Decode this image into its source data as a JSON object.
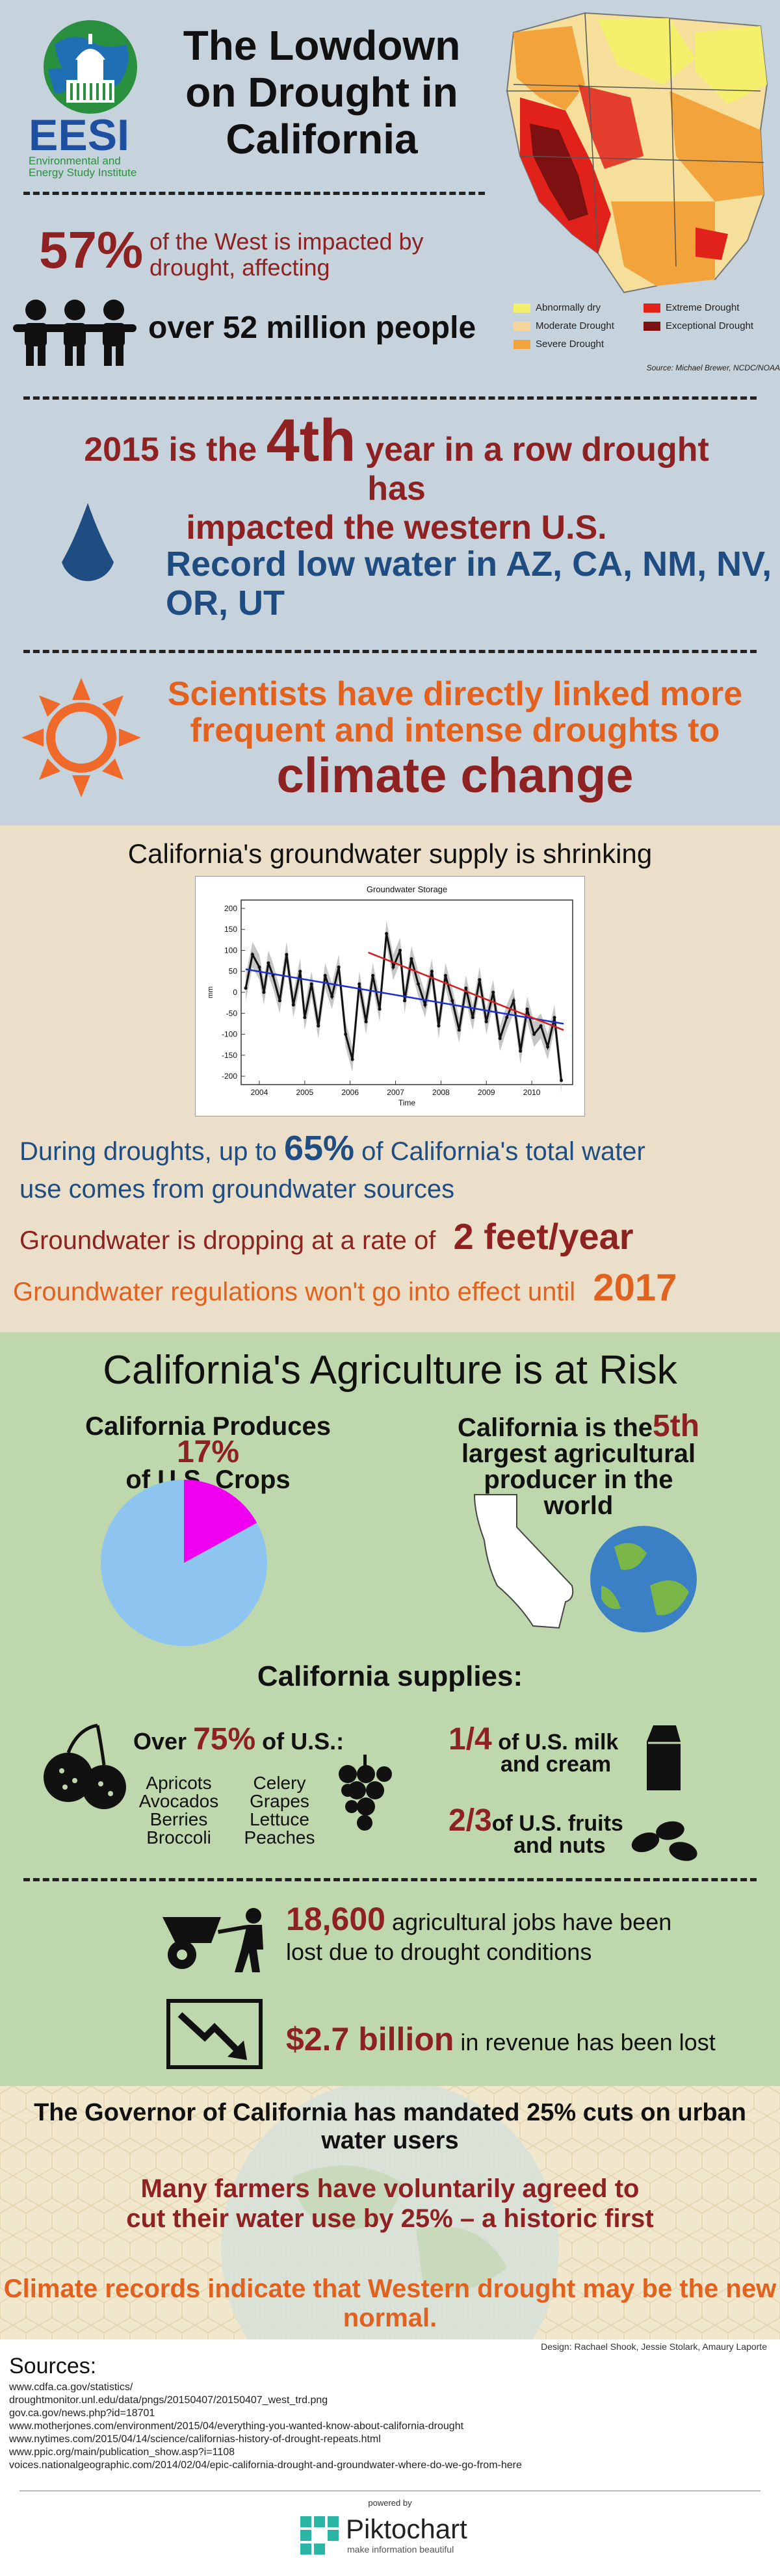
{
  "header": {
    "logo_text": "EESI",
    "logo_subtitle_1": "Environmental and",
    "logo_subtitle_2": "Energy Study Institute",
    "title_line1": "The Lowdown",
    "title_line2": "on Drought in",
    "title_line3": "California"
  },
  "map": {
    "legend": [
      {
        "label": "Abnormally dry",
        "color": "#f5f06b"
      },
      {
        "label": "Moderate Drought",
        "color": "#f7d59a"
      },
      {
        "label": "Severe Drought",
        "color": "#f2a33b"
      },
      {
        "label": "Extreme Drought",
        "color": "#e0221b"
      },
      {
        "label": "Exceptional Drought",
        "color": "#7d1010"
      }
    ],
    "source": "Source: Michael Brewer, NCDC/NOAA"
  },
  "stats": {
    "percent": "57%",
    "percent_text_1": "of the West is impacted by",
    "percent_text_2": "drought, affecting",
    "people": "over 52 million people",
    "year_prefix": "2015 is the",
    "year_big": "4th",
    "year_suffix": "year in a row drought has",
    "year_line2": "impacted the western U.S.",
    "record_low": "Record low water in AZ, CA, NM, NV, OR, UT",
    "sci_line1": "Scientists have directly linked more",
    "sci_line2": "frequent and intense droughts to",
    "sci_line3": "climate change"
  },
  "groundwater": {
    "heading": "California's groundwater supply is shrinking",
    "during_1": "During droughts, up to",
    "during_pct": "65%",
    "during_2": "of California's total water",
    "during_3": "use comes from groundwater sources",
    "dropping": "Groundwater is dropping at a rate of",
    "dropping_val": "2 feet/year",
    "regs": "Groundwater regulations won't go into effect until",
    "regs_year": "2017"
  },
  "chart_data": {
    "type": "line",
    "title": "Groundwater Storage",
    "xlabel": "Time",
    "ylabel": "mm",
    "ylim": [
      -220,
      220
    ],
    "xlim": [
      2003.6,
      2010.9
    ],
    "x_ticks": [
      "2004",
      "2005",
      "2006",
      "2007",
      "2008",
      "2009",
      "2010"
    ],
    "y_ticks": [
      "200",
      "150",
      "100",
      "50",
      "0",
      "-50",
      "-100",
      "-150",
      "-200"
    ],
    "series": [
      {
        "name": "",
        "color": "#111111",
        "x": [
          2003.7,
          2003.85,
          2004.0,
          2004.1,
          2004.2,
          2004.3,
          2004.45,
          2004.6,
          2004.75,
          2004.9,
          2005.0,
          2005.15,
          2005.3,
          2005.45,
          2005.6,
          2005.75,
          2005.9,
          2006.05,
          2006.2,
          2006.35,
          2006.5,
          2006.65,
          2006.8,
          2006.95,
          2007.1,
          2007.2,
          2007.35,
          2007.5,
          2007.65,
          2007.8,
          2007.95,
          2008.1,
          2008.25,
          2008.4,
          2008.55,
          2008.7,
          2008.85,
          2009.0,
          2009.15,
          2009.3,
          2009.45,
          2009.6,
          2009.75,
          2009.9,
          2010.05,
          2010.2,
          2010.35,
          2010.5,
          2010.65
        ],
        "y": [
          10,
          90,
          60,
          0,
          70,
          40,
          -20,
          90,
          -30,
          50,
          -60,
          20,
          -80,
          40,
          -10,
          60,
          -100,
          -160,
          20,
          -70,
          40,
          -40,
          140,
          60,
          100,
          -20,
          80,
          20,
          -30,
          50,
          -80,
          40,
          -20,
          -90,
          10,
          -60,
          30,
          -70,
          0,
          -110,
          -60,
          -20,
          -140,
          -40,
          -100,
          -80,
          -130,
          -60,
          -210
        ]
      },
      {
        "name": "",
        "color": "#1d2fd0",
        "x": [
          2003.7,
          2010.7
        ],
        "y": [
          55,
          -75
        ]
      },
      {
        "name": "",
        "color": "#d02020",
        "x": [
          2006.4,
          2010.7
        ],
        "y": [
          95,
          -90
        ]
      }
    ]
  },
  "agriculture": {
    "heading": "California's Agriculture is at Risk",
    "produces_1": "California Produces",
    "produces_pct": "17%",
    "produces_2": "of U.S. Crops",
    "pie_share": 0.17,
    "fifth_1": "California is the",
    "fifth_big": "5th",
    "fifth_2": "largest agricultural",
    "fifth_3": "producer in the world",
    "supplies": "California supplies:",
    "over": "Over",
    "over_pct": "75%",
    "over_us": "of U.S.:",
    "crops_left": [
      "Apricots",
      "Avocados",
      "Berries",
      "Broccoli"
    ],
    "crops_right": [
      "Celery",
      "Grapes",
      "Lettuce",
      "Peaches"
    ],
    "milk_frac": "1/4",
    "milk_text_1": "of U.S. milk",
    "milk_text_2": "and cream",
    "fruit_frac": "2/3",
    "fruit_text_1": "of U.S. fruits",
    "fruit_text_2": "and nuts",
    "jobs_num": "18,600",
    "jobs_text_1": "agricultural jobs have been",
    "jobs_text_2": "lost due to drought conditions",
    "revenue_num": "$2.7 billion",
    "revenue_text": "in revenue has been lost"
  },
  "governor": {
    "line": "The Governor of California has mandated 25% cuts on urban water users",
    "farmers_1": "Many farmers have voluntarily agreed to",
    "farmers_2": "cut their water use by 25% – a historic first",
    "climate": "Climate records indicate that Western drought may be the new normal."
  },
  "footer": {
    "design_credit": "Design: Rachael Shook, Jessie Stolark, Amaury Laporte",
    "sources_heading": "Sources:",
    "sources": [
      "www.cdfa.ca.gov/statistics/",
      "droughtmonitor.unl.edu/data/pngs/20150407/20150407_west_trd.png",
      "gov.ca.gov/news.php?id=18701",
      "www.motherjones.com/environment/2015/04/everything-you-wanted-know-about-california-drought",
      "www.nytimes.com/2015/04/14/science/californias-history-of-drought-repeats.html",
      "www.ppic.org/main/publication_show.asp?i=1108",
      "voices.nationalgeographic.com/2014/02/04/epic-california-drought-and-groundwater-where-do-we-go-from-here"
    ],
    "powered_by": "powered by",
    "brand": "Piktochart",
    "tagline": "make information beautiful"
  }
}
